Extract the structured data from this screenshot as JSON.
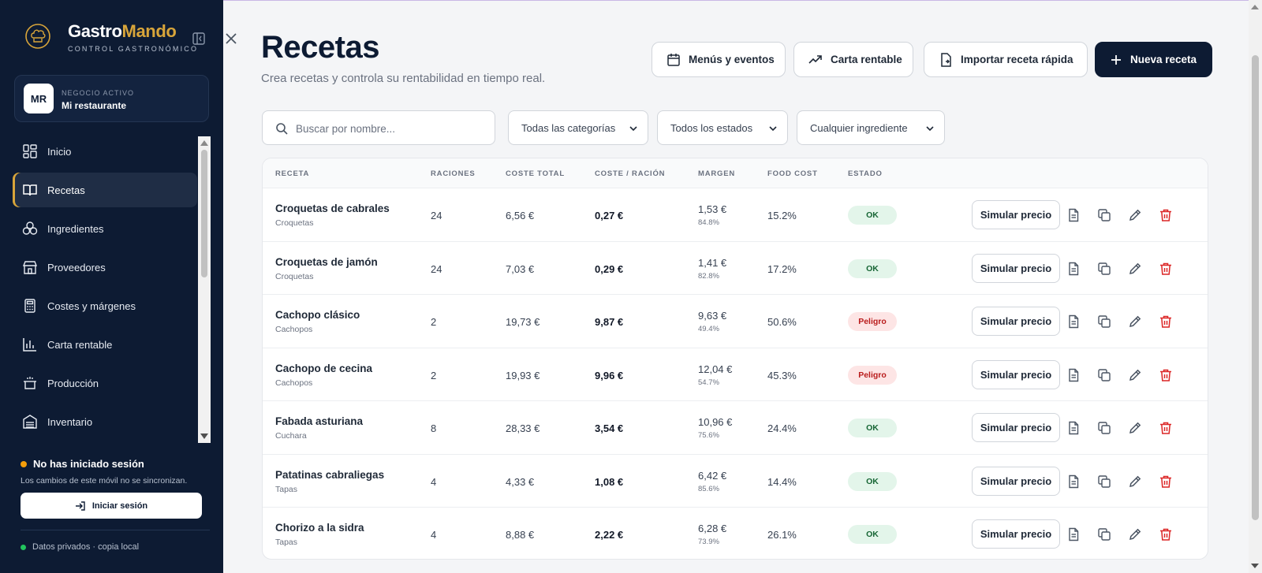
{
  "brand": {
    "name_part1": "Gastro",
    "name_part2": "Mando",
    "subtitle": "CONTROL GASTRONÓMICO",
    "accent_color": "#d8a53a"
  },
  "business": {
    "avatar": "MR",
    "label": "NEGOCIO ACTIVO",
    "name": "Mi restaurante"
  },
  "nav": [
    {
      "label": "Inicio",
      "icon": "dashboard-icon",
      "active": false
    },
    {
      "label": "Recetas",
      "icon": "book-icon",
      "active": true
    },
    {
      "label": "Ingredientes",
      "icon": "ingredients-icon",
      "active": false
    },
    {
      "label": "Proveedores",
      "icon": "store-icon",
      "active": false
    },
    {
      "label": "Costes y márgenes",
      "icon": "calculator-icon",
      "active": false
    },
    {
      "label": "Carta rentable",
      "icon": "bar-chart-icon",
      "active": false
    },
    {
      "label": "Producción",
      "icon": "pot-icon",
      "active": false
    },
    {
      "label": "Inventario",
      "icon": "inventory-icon",
      "active": false
    }
  ],
  "session": {
    "title": "No has iniciado sesión",
    "description": "Los cambios de este móvil no se sincronizan.",
    "login_label": "Iniciar sesión",
    "status_color": "#f59e0b"
  },
  "privacy": {
    "text": "Datos privados · copia local",
    "status_color": "#22c55e"
  },
  "page": {
    "title": "Recetas",
    "subtitle": "Crea recetas y controla su rentabilidad en tiempo real."
  },
  "header_buttons": {
    "menus": "Menús y eventos",
    "carta": "Carta rentable",
    "importar": "Importar receta rápida",
    "nueva": "Nueva receta"
  },
  "filters": {
    "search_placeholder": "Buscar por nombre...",
    "category": "Todas las categorías",
    "status": "Todos los estados",
    "ingredient": "Cualquier ingrediente"
  },
  "table": {
    "headers": {
      "receta": "RECETA",
      "raciones": "RACIONES",
      "coste_total": "COSTE TOTAL",
      "coste_racion": "COSTE / RACIÓN",
      "margen": "MARGEN",
      "food_cost": "FOOD COST",
      "estado": "ESTADO"
    },
    "simulate_label": "Simular precio",
    "rows": [
      {
        "name": "Croquetas de cabrales",
        "category": "Croquetas",
        "servings": "24",
        "total_cost": "6,56 €",
        "cost_per_serving": "0,27 €",
        "margin": "1,53 €",
        "margin_pct": "84.8%",
        "food_cost": "15.2%",
        "status": "OK",
        "status_type": "ok"
      },
      {
        "name": "Croquetas de jamón",
        "category": "Croquetas",
        "servings": "24",
        "total_cost": "7,03 €",
        "cost_per_serving": "0,29 €",
        "margin": "1,41 €",
        "margin_pct": "82.8%",
        "food_cost": "17.2%",
        "status": "OK",
        "status_type": "ok"
      },
      {
        "name": "Cachopo clásico",
        "category": "Cachopos",
        "servings": "2",
        "total_cost": "19,73 €",
        "cost_per_serving": "9,87 €",
        "margin": "9,63 €",
        "margin_pct": "49.4%",
        "food_cost": "50.6%",
        "status": "Peligro",
        "status_type": "danger"
      },
      {
        "name": "Cachopo de cecina",
        "category": "Cachopos",
        "servings": "2",
        "total_cost": "19,93 €",
        "cost_per_serving": "9,96 €",
        "margin": "12,04 €",
        "margin_pct": "54.7%",
        "food_cost": "45.3%",
        "status": "Peligro",
        "status_type": "danger"
      },
      {
        "name": "Fabada asturiana",
        "category": "Cuchara",
        "servings": "8",
        "total_cost": "28,33 €",
        "cost_per_serving": "3,54 €",
        "margin": "10,96 €",
        "margin_pct": "75.6%",
        "food_cost": "24.4%",
        "status": "OK",
        "status_type": "ok"
      },
      {
        "name": "Patatinas cabraliegas",
        "category": "Tapas",
        "servings": "4",
        "total_cost": "4,33 €",
        "cost_per_serving": "1,08 €",
        "margin": "6,42 €",
        "margin_pct": "85.6%",
        "food_cost": "14.4%",
        "status": "OK",
        "status_type": "ok"
      },
      {
        "name": "Chorizo a la sidra",
        "category": "Tapas",
        "servings": "4",
        "total_cost": "8,88 €",
        "cost_per_serving": "2,22 €",
        "margin": "6,28 €",
        "margin_pct": "73.9%",
        "food_cost": "26.1%",
        "status": "OK",
        "status_type": "ok"
      }
    ]
  }
}
